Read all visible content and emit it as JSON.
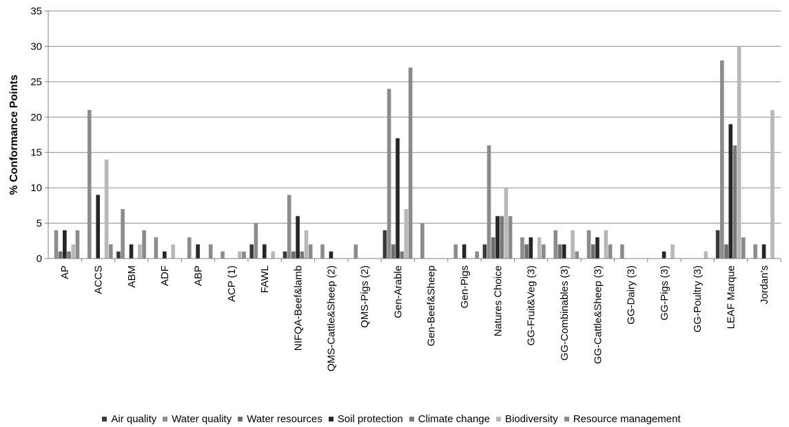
{
  "chart_data": {
    "type": "bar",
    "title": "",
    "xlabel": "",
    "ylabel": "% Conformance Points",
    "ylim": [
      0,
      35
    ],
    "yticks": [
      0,
      5,
      10,
      15,
      20,
      25,
      30,
      35
    ],
    "grid": "horizontal",
    "legend_position": "bottom",
    "categories": [
      "AP",
      "ACCS",
      "ABM",
      "ADF",
      "ABP",
      "ACP (1)",
      "FAWL",
      "NIFQA-Beef&lamb",
      "QMS-Cattle&Sheep (2)",
      "QMS-Pigs (2)",
      "Gen-Arable",
      "Gen-Beef&Sheep",
      "Gen-Pigs",
      "Natures Choice",
      "GG-Fruit&Veg (3)",
      "GG-Combinables (3)",
      "GG-Cattle&Sheep (3)",
      "GG-Dairy (3)",
      "GG-Pigs (3)",
      "GG-Poultry (3)",
      "LEAF Marque",
      "Jordan's"
    ],
    "series": [
      {
        "name": "Air quality",
        "color": "#3a3a3a",
        "values": [
          0,
          0,
          1,
          0,
          0,
          0,
          2,
          1,
          0,
          0,
          4,
          0,
          0,
          2,
          0,
          0,
          0,
          0,
          0,
          0,
          4,
          0
        ]
      },
      {
        "name": "Water quality",
        "color": "#8c8c8c",
        "values": [
          4,
          21,
          7,
          3,
          3,
          1,
          5,
          9,
          2,
          2,
          24,
          5,
          2,
          16,
          3,
          4,
          4,
          2,
          0,
          0,
          28,
          2
        ]
      },
      {
        "name": "Water resources",
        "color": "#6e6e6e",
        "values": [
          1,
          0,
          0,
          0,
          0,
          0,
          0,
          1,
          0,
          0,
          2,
          0,
          0,
          3,
          2,
          2,
          2,
          0,
          0,
          0,
          2,
          0
        ]
      },
      {
        "name": "Soil protection",
        "color": "#262626",
        "values": [
          4,
          9,
          2,
          1,
          2,
          0,
          2,
          6,
          1,
          0,
          17,
          0,
          2,
          6,
          3,
          2,
          3,
          0,
          1,
          0,
          19,
          2
        ]
      },
      {
        "name": "Climate change",
        "color": "#7a7a7a",
        "values": [
          1,
          0,
          0,
          0,
          0,
          0,
          0,
          1,
          0,
          0,
          1,
          0,
          0,
          6,
          0,
          0,
          0,
          0,
          0,
          0,
          16,
          0
        ]
      },
      {
        "name": "Biodiversity",
        "color": "#b8b8b8",
        "values": [
          2,
          14,
          2,
          2,
          0,
          1,
          1,
          4,
          0,
          0,
          7,
          0,
          0,
          10,
          3,
          4,
          4,
          0,
          2,
          1,
          30,
          21
        ]
      },
      {
        "name": "Resource management",
        "color": "#8a8a8a",
        "values": [
          4,
          2,
          4,
          0,
          2,
          1,
          0,
          2,
          0,
          0,
          27,
          0,
          1,
          6,
          2,
          1,
          2,
          0,
          0,
          0,
          3,
          0
        ]
      }
    ]
  }
}
